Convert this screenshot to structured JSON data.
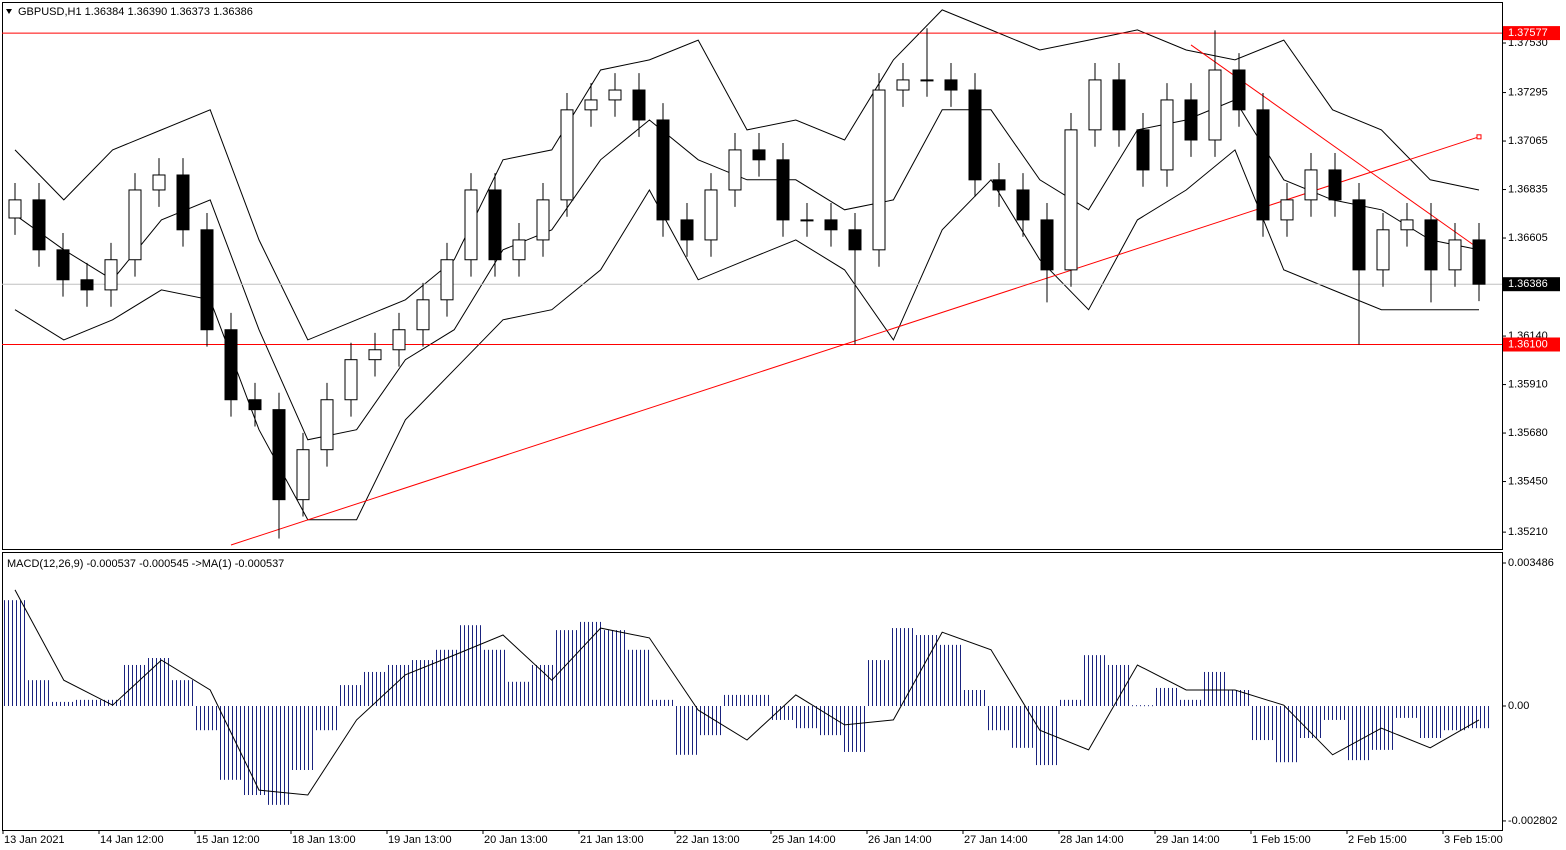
{
  "chart_data": [
    {
      "type": "candlestick",
      "title": "GBPUSD,H1  1.36384 1.36390 1.36373 1.36386",
      "categories": [
        "13 Jan 2021",
        null,
        null,
        null,
        "14 Jan 12:00",
        null,
        null,
        null,
        "15 Jan 12:00",
        null,
        null,
        null,
        "18 Jan 13:00",
        null,
        null,
        null,
        "19 Jan 13:00",
        null,
        null,
        null,
        "20 Jan 13:00",
        null,
        null,
        null,
        "21 Jan 13:00",
        null,
        null,
        null,
        "22 Jan 13:00",
        null,
        null,
        null,
        "25 Jan 14:00",
        null,
        null,
        null,
        "26 Jan 14:00",
        null,
        null,
        null,
        "27 Jan 14:00",
        null,
        null,
        null,
        "28 Jan 14:00",
        null,
        null,
        null,
        "29 Jan 14:00",
        null,
        null,
        null,
        "1 Feb 15:00",
        null,
        null,
        null,
        "2 Feb 15:00",
        null,
        null,
        null,
        "3 Feb 15:00",
        null
      ],
      "open": [
        1.367,
        1.36786,
        1.36549,
        1.36407,
        1.36359,
        1.36502,
        1.36833,
        1.36904,
        1.36644,
        1.3617,
        1.35838,
        1.35791,
        1.35364,
        1.35601,
        1.35838,
        1.36028,
        1.36075,
        1.3617,
        1.36312,
        1.36502,
        1.36833,
        1.36502,
        1.36596,
        1.36786,
        1.37213,
        1.3726,
        1.37307,
        1.37165,
        1.36691,
        1.36596,
        1.36833,
        1.37023,
        1.36976,
        1.36691,
        1.36691,
        1.36644,
        1.36549,
        1.37307,
        1.37355,
        1.37355,
        1.37307,
        1.36881,
        1.36833,
        1.36691,
        1.36454,
        1.37118,
        1.37355,
        1.37118,
        1.36928,
        1.3726,
        1.3707,
        1.37402,
        1.37213,
        1.36691,
        1.36786,
        1.36928,
        1.36786,
        1.36454,
        1.36644,
        1.36691,
        1.36454,
        1.36596
      ],
      "high": [
        1.36866,
        1.36866,
        1.36629,
        1.36487,
        1.36582,
        1.36913,
        1.36984,
        1.36984,
        1.36724,
        1.3625,
        1.35918,
        1.35871,
        1.35681,
        1.35918,
        1.36108,
        1.36155,
        1.3625,
        1.36392,
        1.36582,
        1.36913,
        1.36913,
        1.36676,
        1.36866,
        1.37293,
        1.3734,
        1.37387,
        1.37387,
        1.37245,
        1.36771,
        1.36913,
        1.37103,
        1.37103,
        1.37056,
        1.36771,
        1.36771,
        1.36724,
        1.37387,
        1.37435,
        1.376,
        1.37435,
        1.37387,
        1.36961,
        1.36913,
        1.36771,
        1.37198,
        1.37435,
        1.37435,
        1.37198,
        1.3734,
        1.3734,
        1.3759,
        1.37482,
        1.37293,
        1.36866,
        1.37008,
        1.37008,
        1.36866,
        1.36724,
        1.36771,
        1.36771,
        1.36676,
        1.36676
      ],
      "low": [
        1.3662,
        1.36469,
        1.36327,
        1.36279,
        1.36279,
        1.36422,
        1.36753,
        1.36564,
        1.3609,
        1.35758,
        1.35711,
        1.3518,
        1.35284,
        1.35521,
        1.35758,
        1.35948,
        1.35995,
        1.3609,
        1.36232,
        1.36422,
        1.36422,
        1.36422,
        1.36516,
        1.36706,
        1.37133,
        1.3718,
        1.37085,
        1.36611,
        1.36516,
        1.36516,
        1.36753,
        1.36896,
        1.36611,
        1.36611,
        1.36564,
        1.361,
        1.36469,
        1.37227,
        1.37275,
        1.37227,
        1.36801,
        1.36753,
        1.36611,
        1.363,
        1.36374,
        1.37038,
        1.37038,
        1.36848,
        1.36848,
        1.3699,
        1.3699,
        1.37133,
        1.36611,
        1.36611,
        1.36706,
        1.36706,
        1.361,
        1.36374,
        1.36564,
        1.363,
        1.36374,
        1.36306
      ],
      "close": [
        1.36786,
        1.36549,
        1.36407,
        1.36359,
        1.36502,
        1.36833,
        1.36904,
        1.36644,
        1.3617,
        1.35838,
        1.35791,
        1.35364,
        1.35601,
        1.35838,
        1.36028,
        1.36075,
        1.3617,
        1.36312,
        1.36502,
        1.36833,
        1.36502,
        1.36596,
        1.36786,
        1.37213,
        1.3726,
        1.37307,
        1.37165,
        1.36691,
        1.36596,
        1.36833,
        1.37023,
        1.36976,
        1.36691,
        1.36691,
        1.36644,
        1.36549,
        1.37307,
        1.37355,
        1.37355,
        1.37307,
        1.36881,
        1.36833,
        1.36691,
        1.36454,
        1.37118,
        1.37355,
        1.37118,
        1.36928,
        1.3726,
        1.3707,
        1.37402,
        1.37213,
        1.36691,
        1.36786,
        1.36928,
        1.36786,
        1.36454,
        1.36644,
        1.36691,
        1.36454,
        1.36596,
        1.36386
      ],
      "up_color": "#ffffff",
      "down_color": "#000000",
      "bands": [
        {
          "color": "#000000",
          "values": [
            1.37023,
            1.36786,
            1.37023,
            1.37118,
            1.37213,
            1.36596,
            1.36122,
            1.36217,
            1.36312,
            1.36502,
            1.36976,
            1.37023,
            1.37402,
            1.3745,
            1.37544,
            1.37118,
            1.37165,
            1.3707,
            1.3745,
            1.37687,
            1.37592,
            1.37497,
            1.37544,
            1.37592,
            1.37497,
            1.3745,
            1.37544,
            1.37213,
            1.37118,
            1.36881,
            1.36833
          ]
        },
        {
          "color": "#000000",
          "values": [
            1.36715,
            1.36549,
            1.36407,
            1.36691,
            1.36786,
            1.3617,
            1.35648,
            1.35696,
            1.36028,
            1.3617,
            1.36549,
            1.36644,
            1.36976,
            1.37165,
            1.36976,
            1.36881,
            1.36881,
            1.36739,
            1.36786,
            1.37213,
            1.37213,
            1.36881,
            1.36739,
            1.37118,
            1.37165,
            1.3726,
            1.36881,
            1.36786,
            1.36739,
            1.36596,
            1.36549
          ]
        },
        {
          "color": "#000000",
          "values": [
            1.36265,
            1.36122,
            1.36217,
            1.36359,
            1.36312,
            1.35696,
            1.35269,
            1.35269,
            1.35743,
            1.3598,
            1.36217,
            1.36265,
            1.36454,
            1.36833,
            1.36407,
            1.36502,
            1.36596,
            1.36454,
            1.36122,
            1.36644,
            1.36881,
            1.36502,
            1.36265,
            1.36691,
            1.36833,
            1.37023,
            1.36454,
            1.36359,
            1.36265,
            1.36265,
            1.36265
          ]
        }
      ],
      "hlines": [
        {
          "value": 1.37577,
          "label": "1.37577"
        },
        {
          "value": 1.361,
          "label": "1.36100"
        }
      ],
      "line_color": "#ff0000",
      "trendlines": [
        {
          "from": [
            9,
            1.35149
          ],
          "to": [
            61,
            1.37085
          ]
        },
        {
          "from": [
            49,
            1.37521
          ],
          "to": [
            61,
            1.36554
          ]
        }
      ],
      "last_price": 1.36386,
      "ylim": [
        1.3513,
        1.37734
      ],
      "yticks": [
        {
          "value": 1.3753,
          "label": "1.37530"
        },
        1.37295,
        1.37065,
        1.36835,
        1.36605,
        {
          "value": 1.3614,
          "label": "1.36140"
        },
        {
          "value": 1.3591,
          "label": "1.35910"
        },
        {
          "value": 1.3568,
          "label": "1.35680"
        },
        {
          "value": 1.3545,
          "label": "1.35450"
        },
        {
          "value": 1.3521,
          "label": "1.35210"
        }
      ]
    },
    {
      "type": "macd",
      "title": "MACD(12,26,9) -0.000537 -0.000545  ->MA(1) -0.000537",
      "color": "#1a237e",
      "values": [
        0.00258,
        0.00063,
        0.0001,
        0.00015,
        0.00015,
        0.001,
        0.00117,
        0.00063,
        -0.00059,
        -0.0018,
        -0.00217,
        -0.00241,
        -0.00156,
        -0.00059,
        0.00051,
        0.00083,
        0.001,
        0.00112,
        0.00137,
        0.00197,
        0.00137,
        0.00059,
        0.001,
        0.00185,
        0.00205,
        0.00185,
        0.00137,
        0.00015,
        -0.00119,
        -0.00071,
        0.00027,
        0.00027,
        -0.00034,
        -0.00054,
        -0.00071,
        -0.00112,
        0.00112,
        0.0019,
        0.00173,
        0.00149,
        0.00039,
        -0.00059,
        -0.00102,
        -0.00144,
        0.00015,
        0.00124,
        0.001,
        2e-05,
        0.00044,
        0.00015,
        0.00083,
        0.00039,
        -0.00083,
        -0.00137,
        -0.00078,
        -0.00034,
        -0.00132,
        -0.00107,
        -0.00029,
        -0.00078,
        -0.00059,
        -0.00054
      ],
      "signal": {
        "color": "#000000",
        "values": [
          0.00283,
          0.00063,
          2e-05,
          0.00112,
          0.00039,
          -0.00205,
          -0.00217,
          -0.00034,
          0.00076,
          0.00124,
          0.00173,
          0.00063,
          0.0019,
          0.00166,
          -0.0001,
          -0.00083,
          0.00027,
          -0.00046,
          -0.00034,
          0.0018,
          0.00137,
          -0.00059,
          -0.00107,
          0.001,
          0.00039,
          0.00039,
          2e-05,
          -0.00119,
          -0.00054,
          -0.00102,
          -0.00034
        ]
      },
      "ylim": [
        -0.003023,
        0.00373
      ],
      "yticks": [
        0.003486,
        {
          "value": 0,
          "label": "0.00"
        },
        -0.002802
      ]
    }
  ]
}
